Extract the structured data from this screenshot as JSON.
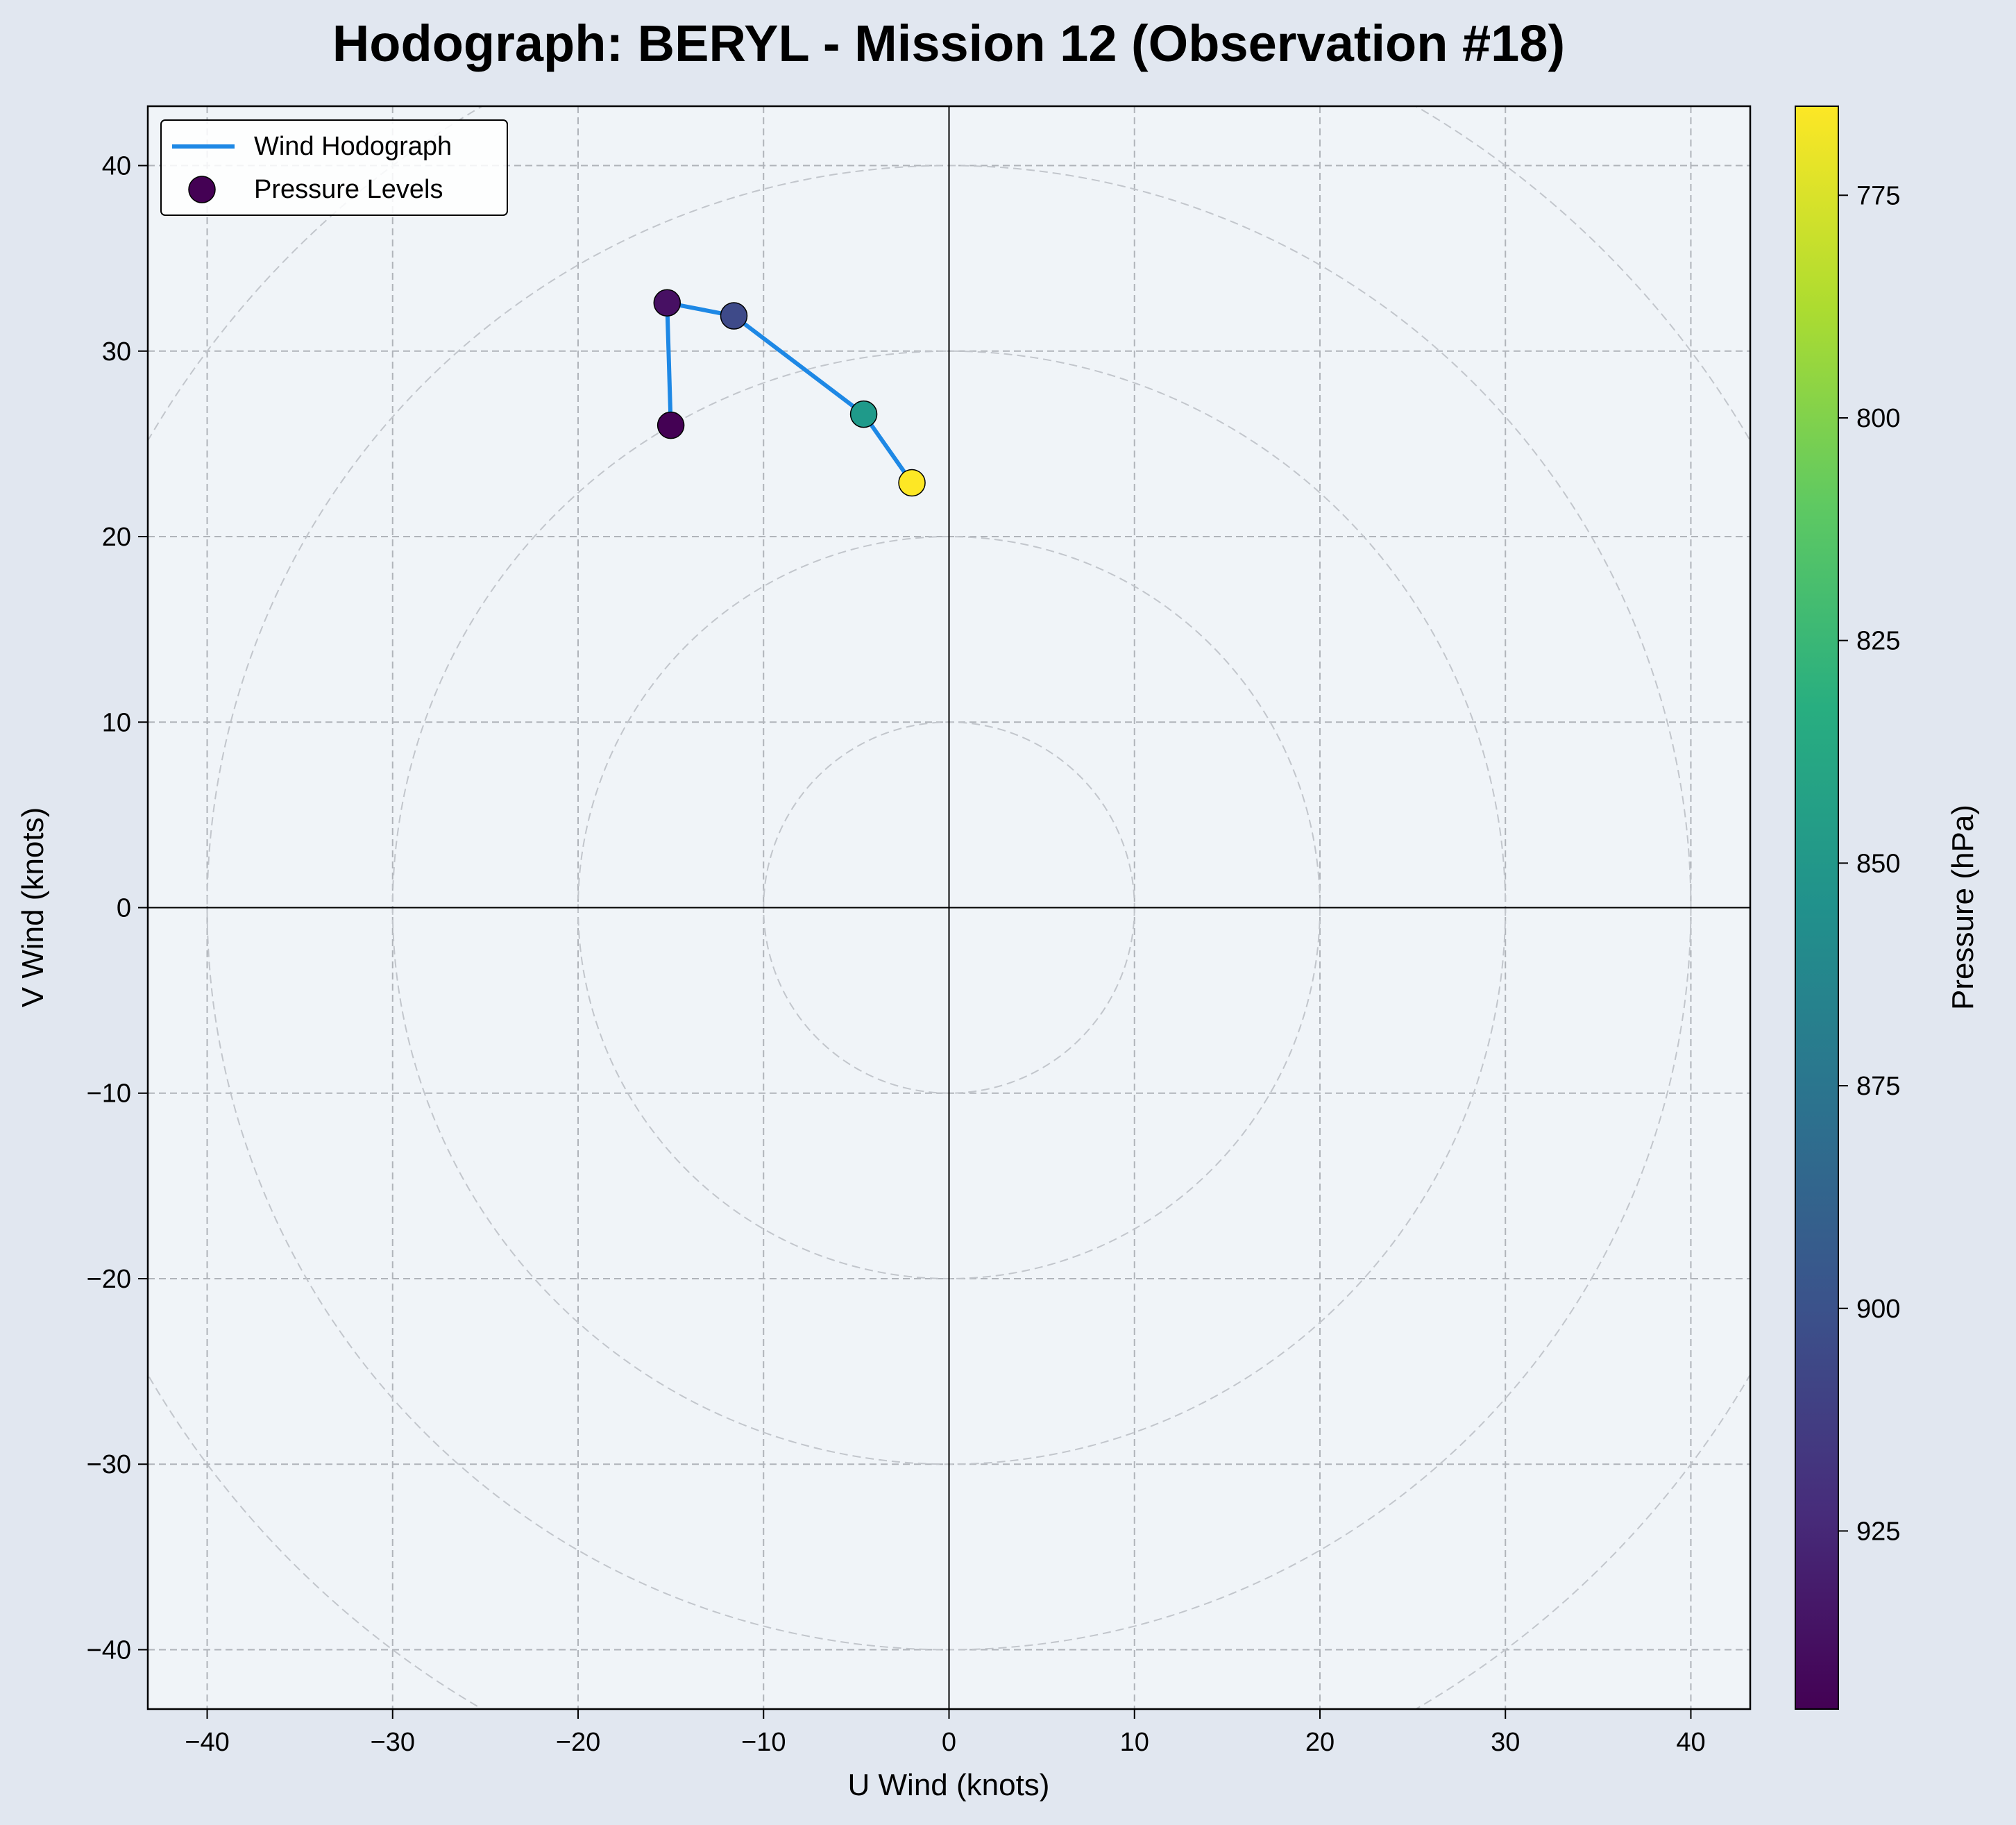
{
  "chart_data": {
    "type": "scatter",
    "title": "Hodograph: BERYL - Mission 12 (Observation #18)",
    "xlabel": "U Wind (knots)",
    "ylabel": "V Wind (knots)",
    "xlim": [
      -43.2,
      43.2
    ],
    "ylim": [
      -43.2,
      43.2
    ],
    "xticks": [
      -40,
      -30,
      -20,
      -10,
      0,
      10,
      20,
      30,
      40
    ],
    "yticks": [
      -40,
      -30,
      -20,
      -10,
      0,
      10,
      20,
      30,
      40
    ],
    "grid": true,
    "speed_rings": [
      10,
      20,
      30,
      40,
      50
    ],
    "legend": {
      "location": "top-left",
      "entries": [
        "Wind Hodograph",
        "Pressure Levels"
      ]
    },
    "series": [
      {
        "name": "Wind Hodograph",
        "kind": "line",
        "color": "#1e88e5",
        "points": [
          {
            "u": -15.0,
            "v": 26.0
          },
          {
            "u": -15.2,
            "v": 32.6
          },
          {
            "u": -11.6,
            "v": 31.9
          },
          {
            "u": -4.6,
            "v": 26.6
          },
          {
            "u": -2.0,
            "v": 22.9
          }
        ]
      },
      {
        "name": "Pressure Levels",
        "kind": "scatter",
        "points": [
          {
            "u": -15.0,
            "v": 26.0,
            "pressure": 945,
            "color": "#440154"
          },
          {
            "u": -15.2,
            "v": 32.6,
            "pressure": 936,
            "color": "#471063"
          },
          {
            "u": -11.6,
            "v": 31.9,
            "pressure": 920,
            "color": "#3e4a89"
          },
          {
            "u": -4.6,
            "v": 26.6,
            "pressure": 853,
            "color": "#1f9a8a"
          },
          {
            "u": -2.0,
            "v": 22.9,
            "pressure": 765,
            "color": "#fde725"
          }
        ]
      }
    ],
    "colorbar": {
      "label": "Pressure (hPa)",
      "colormap": "viridis",
      "range": [
        765,
        945
      ],
      "ticks": [
        775,
        800,
        825,
        850,
        875,
        900,
        925
      ]
    }
  }
}
